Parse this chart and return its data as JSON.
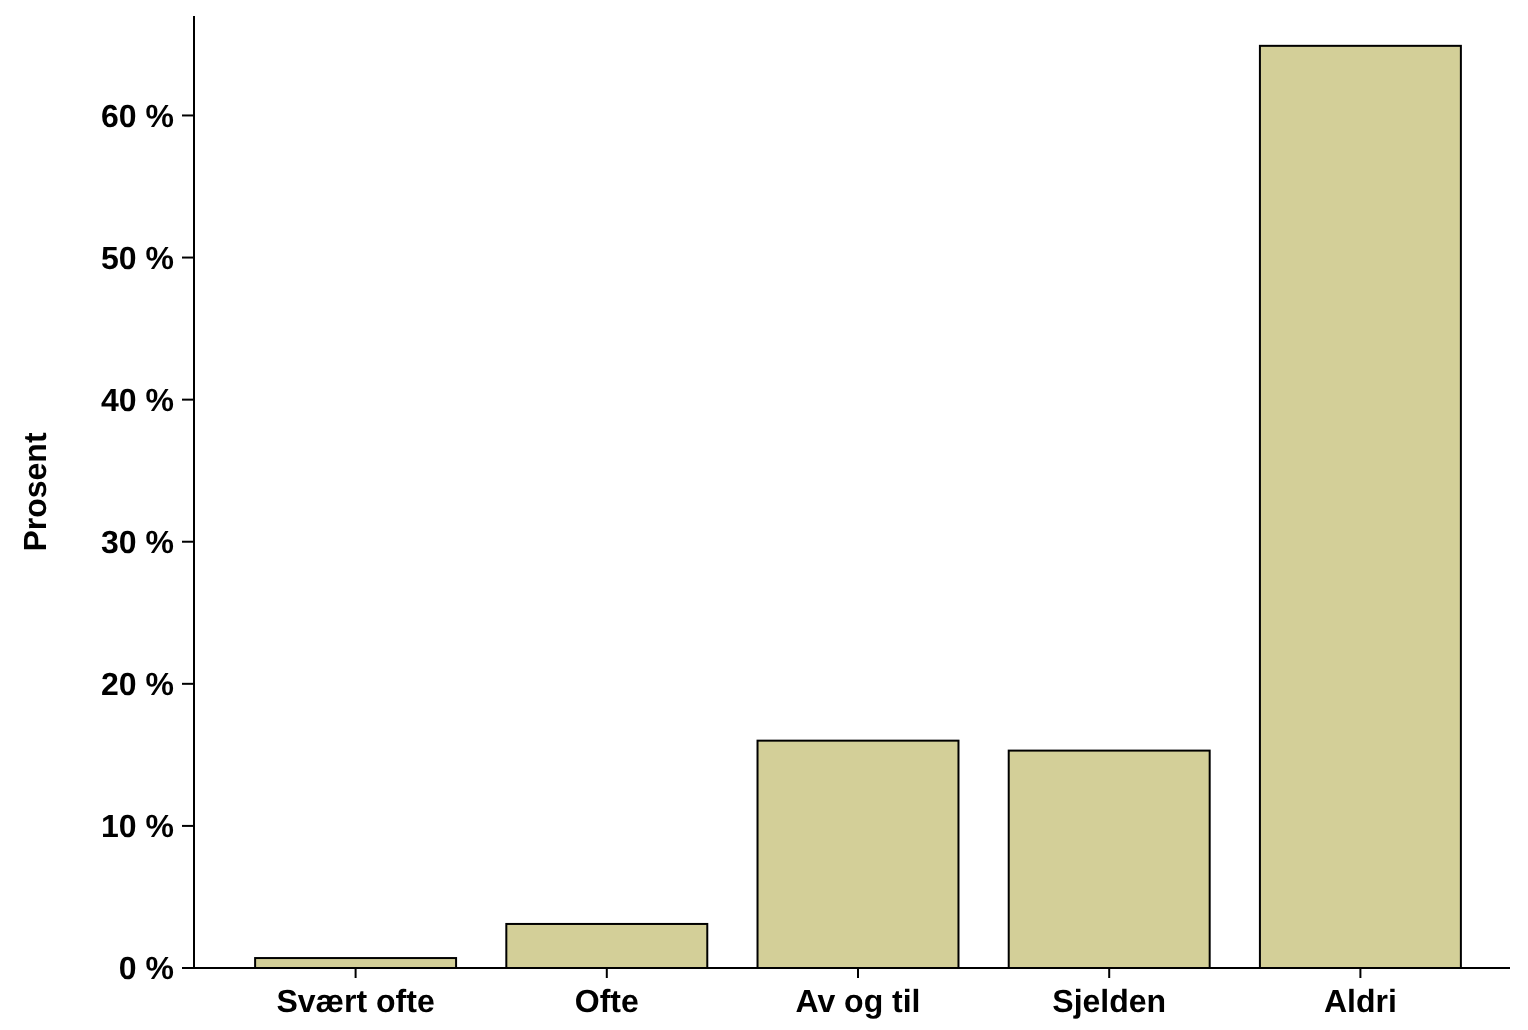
{
  "chart_data": {
    "type": "bar",
    "ylabel": "Prosent",
    "categories": [
      "Svært ofte",
      "Ofte",
      "Av og til",
      "Sjelden",
      "Aldri"
    ],
    "values": [
      0.7,
      3.1,
      16.0,
      15.3,
      64.9
    ],
    "color": "#d3cf98",
    "ylim": [
      0,
      67
    ],
    "yticks": [
      {
        "value": 0,
        "label": "0 %"
      },
      {
        "value": 10,
        "label": "10 %"
      },
      {
        "value": 20,
        "label": "20 %"
      },
      {
        "value": 30,
        "label": "30 %"
      },
      {
        "value": 40,
        "label": "40 %"
      },
      {
        "value": 50,
        "label": "50 %"
      },
      {
        "value": 60,
        "label": "60 %"
      }
    ],
    "grid": false
  }
}
